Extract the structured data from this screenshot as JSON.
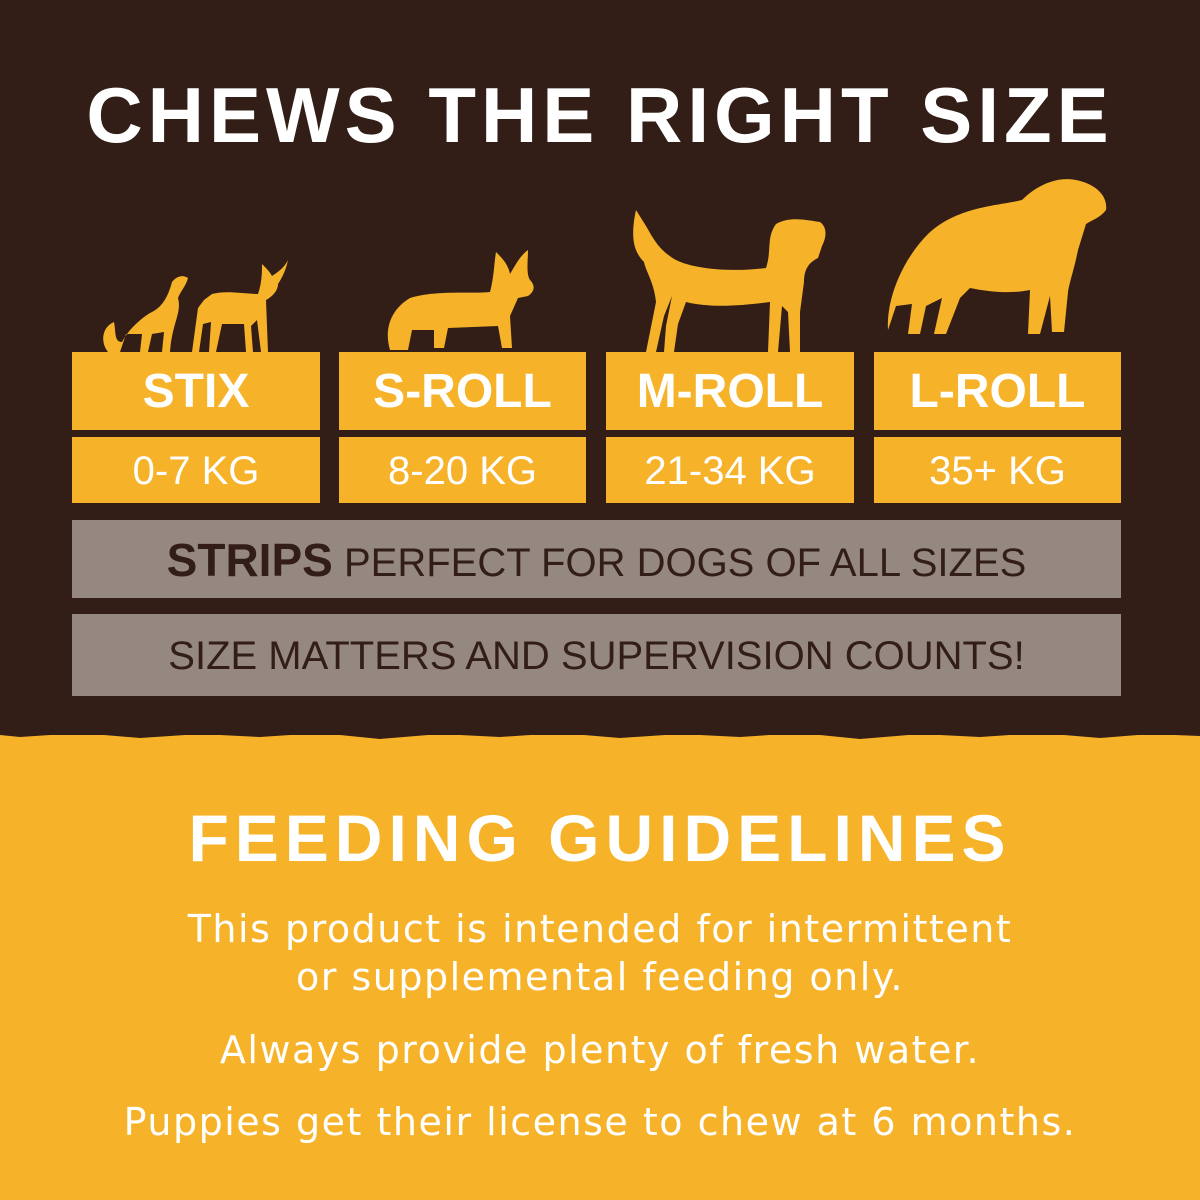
{
  "colors": {
    "dark_brown": "#321e16",
    "yellow": "#f6b228",
    "gray": "#958880",
    "white": "#ffffff"
  },
  "title": "CHEWS THE RIGHT SIZE",
  "sizes": [
    {
      "name": "STIX",
      "weight": "0-7 KG",
      "icon": "small-dog-and-cat-icon"
    },
    {
      "name": "S-ROLL",
      "weight": "8-20 KG",
      "icon": "corgi-icon"
    },
    {
      "name": "M-ROLL",
      "weight": "21-34 KG",
      "icon": "medium-dog-icon"
    },
    {
      "name": "L-ROLL",
      "weight": "35+ KG",
      "icon": "large-dog-icon"
    }
  ],
  "strips": {
    "label": "STRIPS",
    "text": "PERFECT FOR DOGS OF ALL SIZES"
  },
  "supervision": "SIZE MATTERS AND SUPERVISION COUNTS!",
  "feeding": {
    "title": "FEEDING GUIDELINES",
    "line1": "This product is intended for intermittent",
    "line2": "or supplemental feeding only.",
    "line3": "Always provide plenty of fresh water.",
    "line4": "Puppies get their license to chew at 6 months."
  }
}
